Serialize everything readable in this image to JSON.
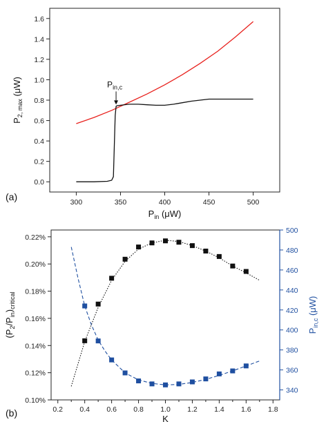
{
  "chart_data": [
    {
      "type": "line",
      "panel_label": "(a)",
      "xlabel": "P",
      "xlabel_sub": "in",
      "xlabel_unit": " (μW)",
      "ylabel": "P",
      "ylabel_sub": "2, max",
      "ylabel_unit": " (μW)",
      "xlim": [
        270,
        530
      ],
      "ylim": [
        -0.1,
        1.7
      ],
      "xticks": [
        300,
        350,
        400,
        450,
        500
      ],
      "xtick_labels": [
        "300",
        "350",
        "400",
        "450",
        "500"
      ],
      "yticks": [
        0.0,
        0.2,
        0.4,
        0.6,
        0.8,
        1.0,
        1.2,
        1.4,
        1.6
      ],
      "ytick_labels": [
        "0.0",
        "0.2",
        "0.4",
        "0.6",
        "0.8",
        "1.0",
        "1.2",
        "1.4",
        "1.6"
      ],
      "grid": false,
      "annotation": {
        "text": "P",
        "sub": "in,c",
        "x": 345,
        "y": 0.75
      },
      "series": [
        {
          "color": "#e8201c",
          "x": [
            300,
            320,
            340,
            360,
            380,
            400,
            420,
            440,
            460,
            480,
            500
          ],
          "y": [
            0.57,
            0.63,
            0.7,
            0.78,
            0.86,
            0.95,
            1.05,
            1.16,
            1.28,
            1.42,
            1.57
          ]
        },
        {
          "color": "#111111",
          "x": [
            300,
            320,
            335,
            340,
            342,
            343,
            344,
            345,
            346,
            350,
            360,
            370,
            380,
            390,
            400,
            410,
            420,
            430,
            440,
            450,
            460,
            470,
            480,
            490,
            500
          ],
          "y": [
            0.0,
            0.0,
            0.005,
            0.015,
            0.05,
            0.35,
            0.65,
            0.74,
            0.745,
            0.75,
            0.76,
            0.76,
            0.755,
            0.75,
            0.75,
            0.76,
            0.775,
            0.79,
            0.8,
            0.81,
            0.81,
            0.81,
            0.81,
            0.81,
            0.81
          ]
        }
      ]
    },
    {
      "type": "scatter",
      "panel_label": "(b)",
      "xlabel": "K",
      "ylabel": "(P",
      "ylabel_sub1": "2",
      "ylabel_mid": "/P",
      "ylabel_sub2": "in",
      "ylabel_close": ")",
      "ylabel_sub3": "critical",
      "y2label": "P",
      "y2label_sub": "in,c",
      "y2label_unit": " (μW)",
      "xlim": [
        0.15,
        1.85
      ],
      "ylim": [
        0.1,
        0.225
      ],
      "y2lim": [
        330,
        500
      ],
      "xticks": [
        0.2,
        0.3,
        0.4,
        0.5,
        0.6,
        0.7,
        0.8,
        0.9,
        1.0,
        1.1,
        1.2,
        1.3,
        1.4,
        1.5,
        1.6,
        1.7,
        1.8
      ],
      "xtick_labels": [
        "0.2",
        "0.4",
        "0.6",
        "0.8",
        "1.0",
        "1.2",
        "1.4",
        "1.6",
        "1.8"
      ],
      "yticks": [
        0.1,
        0.12,
        0.14,
        0.16,
        0.18,
        0.2,
        0.22
      ],
      "ytick_labels": [
        "0.10%",
        "0.12%",
        "0.14%",
        "0.16%",
        "0.18%",
        "0.20%",
        "0.22%"
      ],
      "y2ticks": [
        340,
        360,
        380,
        400,
        420,
        440,
        460,
        480,
        500
      ],
      "y2tick_labels": [
        "340",
        "360",
        "380",
        "400",
        "420",
        "440",
        "460",
        "480",
        "500"
      ],
      "grid": false,
      "right_axis_color": "#1f4fa0",
      "series": [
        {
          "axis": "left",
          "marker": "square",
          "color": "#111111",
          "x": [
            0.4,
            0.5,
            0.6,
            0.7,
            0.8,
            0.9,
            1.0,
            1.1,
            1.2,
            1.3,
            1.4,
            1.5,
            1.6
          ],
          "y": [
            0.1435,
            0.1705,
            0.1895,
            0.2035,
            0.2125,
            0.2155,
            0.217,
            0.216,
            0.2135,
            0.2095,
            0.2055,
            0.1985,
            0.1945
          ]
        },
        {
          "axis": "left",
          "type": "fit",
          "style": "dotted",
          "color": "#111111",
          "x": [
            0.3,
            0.4,
            0.5,
            0.6,
            0.7,
            0.8,
            0.9,
            1.0,
            1.1,
            1.2,
            1.3,
            1.4,
            1.5,
            1.6,
            1.7
          ],
          "y": [
            0.11,
            0.143,
            0.168,
            0.188,
            0.202,
            0.211,
            0.2155,
            0.2175,
            0.2165,
            0.2135,
            0.2095,
            0.2045,
            0.1985,
            0.1935,
            0.188
          ]
        },
        {
          "axis": "right",
          "marker": "square",
          "color": "#1f4fa0",
          "x": [
            0.4,
            0.5,
            0.6,
            0.7,
            0.8,
            0.9,
            1.0,
            1.1,
            1.2,
            1.3,
            1.4,
            1.5,
            1.6
          ],
          "y": [
            424,
            389,
            370,
            357,
            349,
            346,
            345,
            346,
            348,
            351,
            356,
            359,
            364
          ]
        },
        {
          "axis": "right",
          "type": "fit",
          "style": "dashed",
          "color": "#1f4fa0",
          "x": [
            0.3,
            0.35,
            0.4,
            0.45,
            0.5,
            0.55,
            0.6,
            0.7,
            0.8,
            0.9,
            1.0,
            1.1,
            1.2,
            1.3,
            1.4,
            1.5,
            1.6,
            1.7
          ],
          "y": [
            483,
            452,
            424,
            405,
            390,
            379,
            370,
            357,
            350,
            346.5,
            345,
            345.5,
            347.5,
            350.5,
            354.5,
            359,
            364,
            369
          ]
        }
      ]
    }
  ]
}
